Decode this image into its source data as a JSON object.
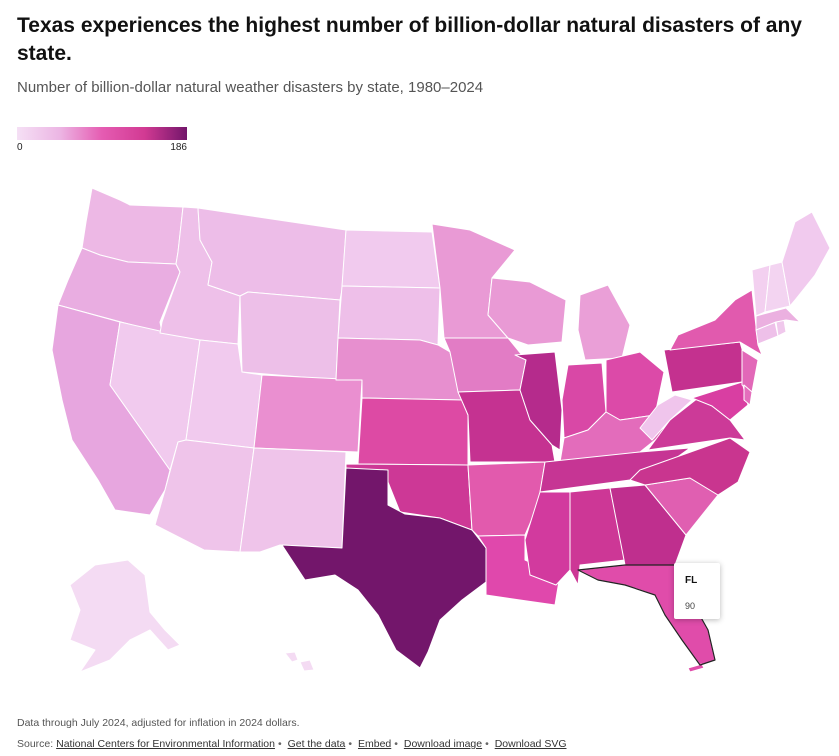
{
  "header": {
    "title": "Texas experiences the highest number of billion-dollar natural disasters of any state.",
    "subtitle": "Number of billion-dollar natural weather disasters by state, 1980–2024"
  },
  "legend": {
    "min_label": "0",
    "max_label": "186"
  },
  "colors": {
    "low": "#f5e0f5",
    "light": "#ecb6e4",
    "mid": "#e55cb2",
    "high": "#d23a93",
    "max": "#73166b",
    "border": "#ffffff"
  },
  "tooltip": {
    "state": "FL",
    "value": "90"
  },
  "footer": {
    "notes": "Data through July 2024, adjusted for inflation in 2024 dollars.",
    "source_prefix": "Source:",
    "source_link": "National Centers for Environmental Information",
    "links": [
      "Get the data",
      "Embed",
      "Download image",
      "Download SVG"
    ]
  }
}
